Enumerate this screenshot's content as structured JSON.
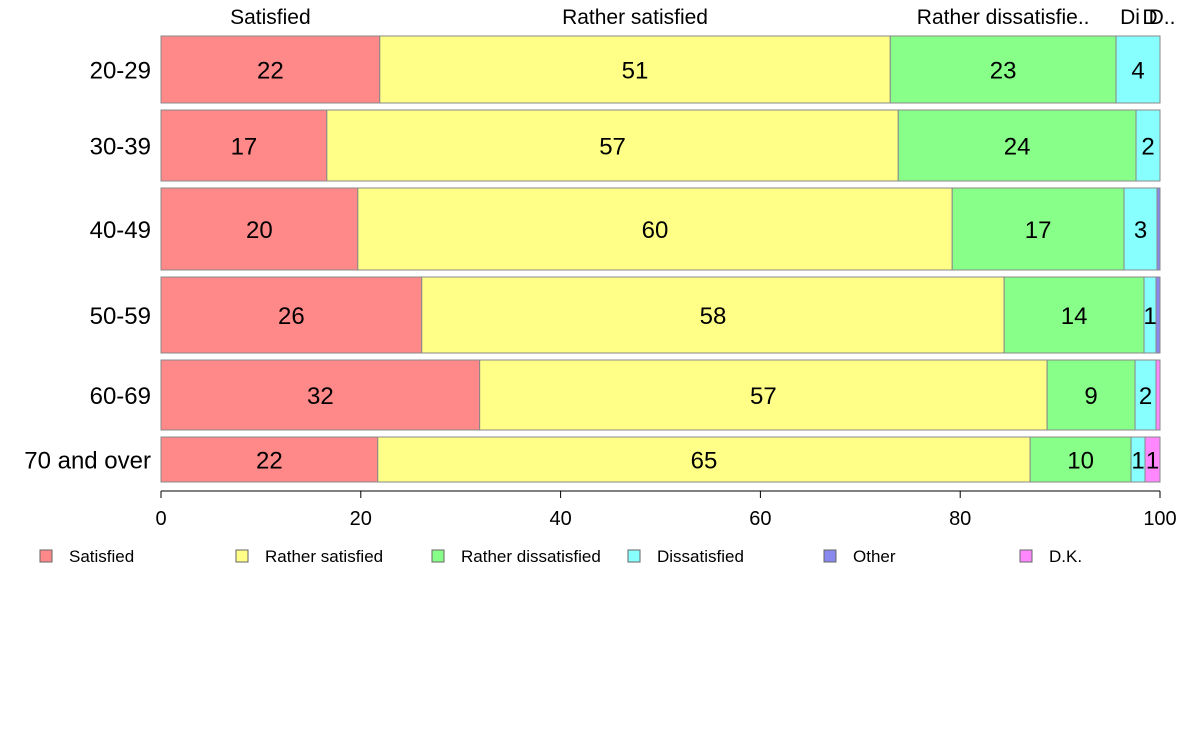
{
  "chart_data": {
    "type": "bar",
    "orientation": "horizontal",
    "stacked": true,
    "normalized": true,
    "categories": [
      "20-29",
      "30-39",
      "40-49",
      "50-59",
      "60-69",
      "70 and over"
    ],
    "series": [
      {
        "name": "Satisfied",
        "color": "#FF8888",
        "values": [
          21.9,
          16.6,
          19.7,
          26.1,
          31.9,
          21.7
        ],
        "labels": [
          "22",
          "17",
          "20",
          "26",
          "32",
          "22"
        ]
      },
      {
        "name": "Rather satisfied",
        "color": "#FFFF88",
        "values": [
          51.1,
          57.2,
          59.5,
          58.3,
          56.8,
          65.3
        ],
        "labels": [
          "51",
          "57",
          "60",
          "58",
          "57",
          "65"
        ]
      },
      {
        "name": "Rather dissatisfied",
        "color": "#88FF88",
        "values": [
          22.6,
          23.8,
          17.2,
          14.0,
          8.8,
          10.1
        ],
        "labels": [
          "23",
          "24",
          "17",
          "14",
          "9",
          "10"
        ]
      },
      {
        "name": "Dissatisfied",
        "color": "#88FFFF",
        "values": [
          4.4,
          2.4,
          3.3,
          1.2,
          2.1,
          1.4
        ],
        "labels": [
          "4",
          "2",
          "3",
          "1",
          "2",
          "1"
        ]
      },
      {
        "name": "Other",
        "color": "#8888EE",
        "values": [
          0.0,
          0.0,
          0.3,
          0.4,
          0.0,
          0.0
        ],
        "labels": [
          "",
          "",
          "",
          "",
          "",
          ""
        ]
      },
      {
        "name": "D.K.",
        "color": "#FF88FF",
        "values": [
          0.0,
          0.0,
          0.0,
          0.0,
          0.4,
          1.5
        ],
        "labels": [
          "",
          "",
          "",
          "",
          "",
          "1"
        ]
      }
    ],
    "top_labels": [
      "Satisfied",
      "Rather satisfied",
      "Rather dissatisfie..",
      "Di",
      "D",
      "D.."
    ],
    "x_ticks": [
      0,
      20,
      40,
      60,
      80,
      100
    ],
    "xlim": [
      0,
      100
    ],
    "legend": "bottom",
    "grid": false,
    "bar_border_color": "#888888",
    "axis_color": "#000000"
  }
}
